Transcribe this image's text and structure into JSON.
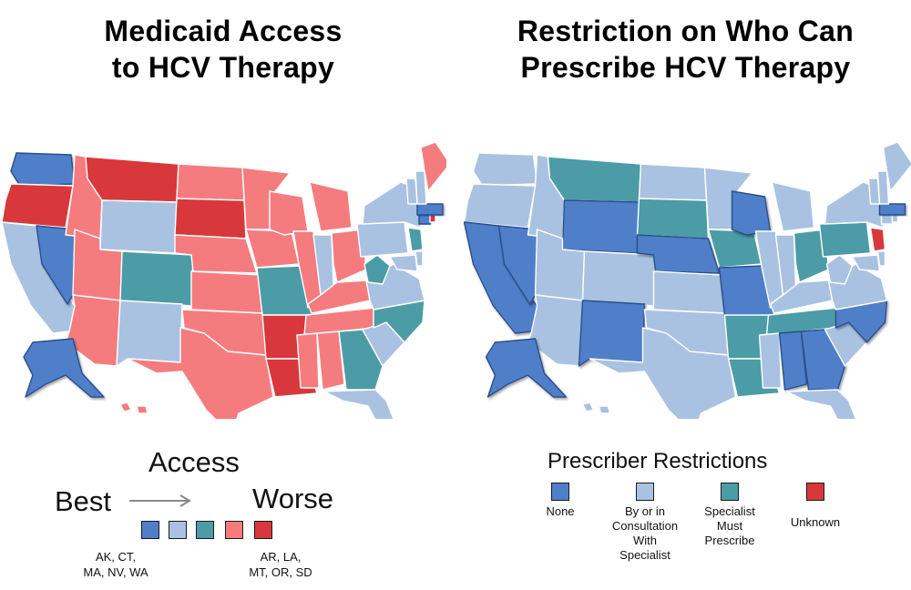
{
  "left": {
    "title_lines": [
      "Medicaid Access",
      "to HCV Therapy"
    ],
    "legend": {
      "heading": "Access",
      "best": "Best",
      "worse": "Worse",
      "swatches": [
        "#4f7fc9",
        "#a9c2e2",
        "#4b9ca6",
        "#f57c7e",
        "#d8383b"
      ],
      "best_states": [
        "AK, CT,",
        "MA, NV, WA"
      ],
      "worst_states": [
        "AR, LA,",
        "MT, OR, SD"
      ]
    }
  },
  "right": {
    "title_lines": [
      "Restriction on Who Can",
      "Prescribe HCV Therapy"
    ],
    "legend": {
      "heading": "Prescriber Restrictions",
      "items": [
        {
          "lines": [
            "None"
          ],
          "color": "#4f7fc9"
        },
        {
          "lines": [
            "By or in",
            "Consultation",
            "With",
            "Specialist"
          ],
          "color": "#a9c2e2"
        },
        {
          "lines": [
            "Specialist",
            "Must",
            "Prescribe"
          ],
          "color": "#4b9ca6"
        },
        {
          "lines": [
            "Unknown"
          ],
          "color": "#d8383b"
        }
      ]
    }
  },
  "colors": {
    "best": "#4f7fc9",
    "light": "#a9c2e2",
    "teal": "#4b9ca6",
    "pink": "#f57c7e",
    "red": "#d8383b"
  }
}
